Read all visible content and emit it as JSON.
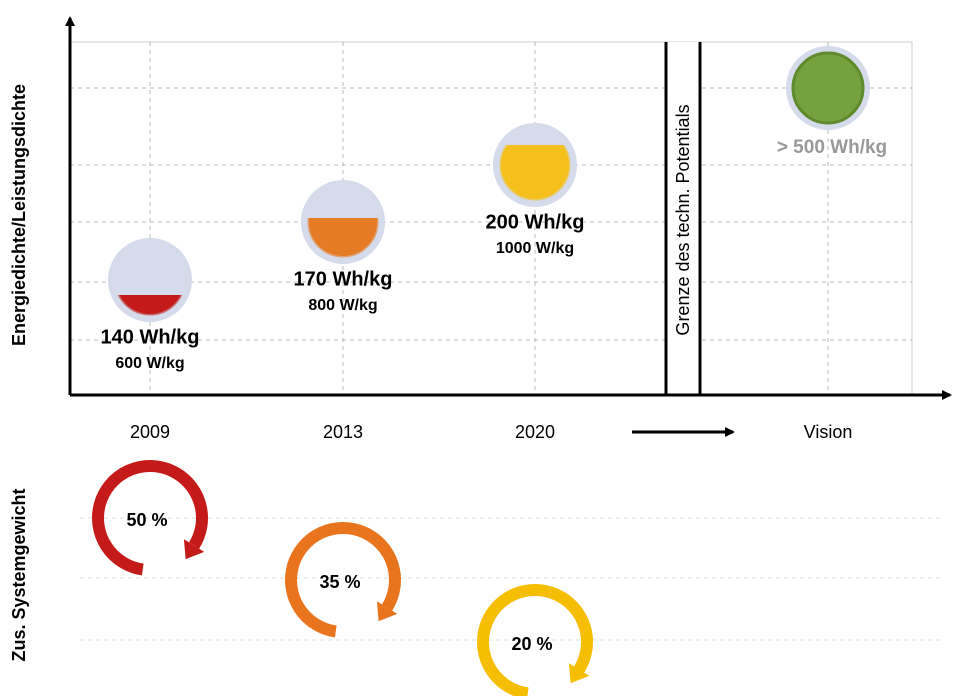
{
  "y_axis_label": "Energiedichte/Leistungsdichte",
  "weight_axis_label": "Zus. Systemgewicht",
  "categories": [
    "2009",
    "2013",
    "2020",
    "Vision"
  ],
  "limit_label": "Grenze des techn. Potentials",
  "nodes": [
    {
      "energy": "140 Wh/kg",
      "power": "600 W/kg"
    },
    {
      "energy": "170 Wh/kg",
      "power": "800 W/kg"
    },
    {
      "energy": "200 Wh/kg",
      "power": "1000 W/kg"
    },
    {
      "energy": "> 500 Wh/kg"
    }
  ],
  "weights": [
    "50 %",
    "35 %",
    "20 %"
  ]
}
